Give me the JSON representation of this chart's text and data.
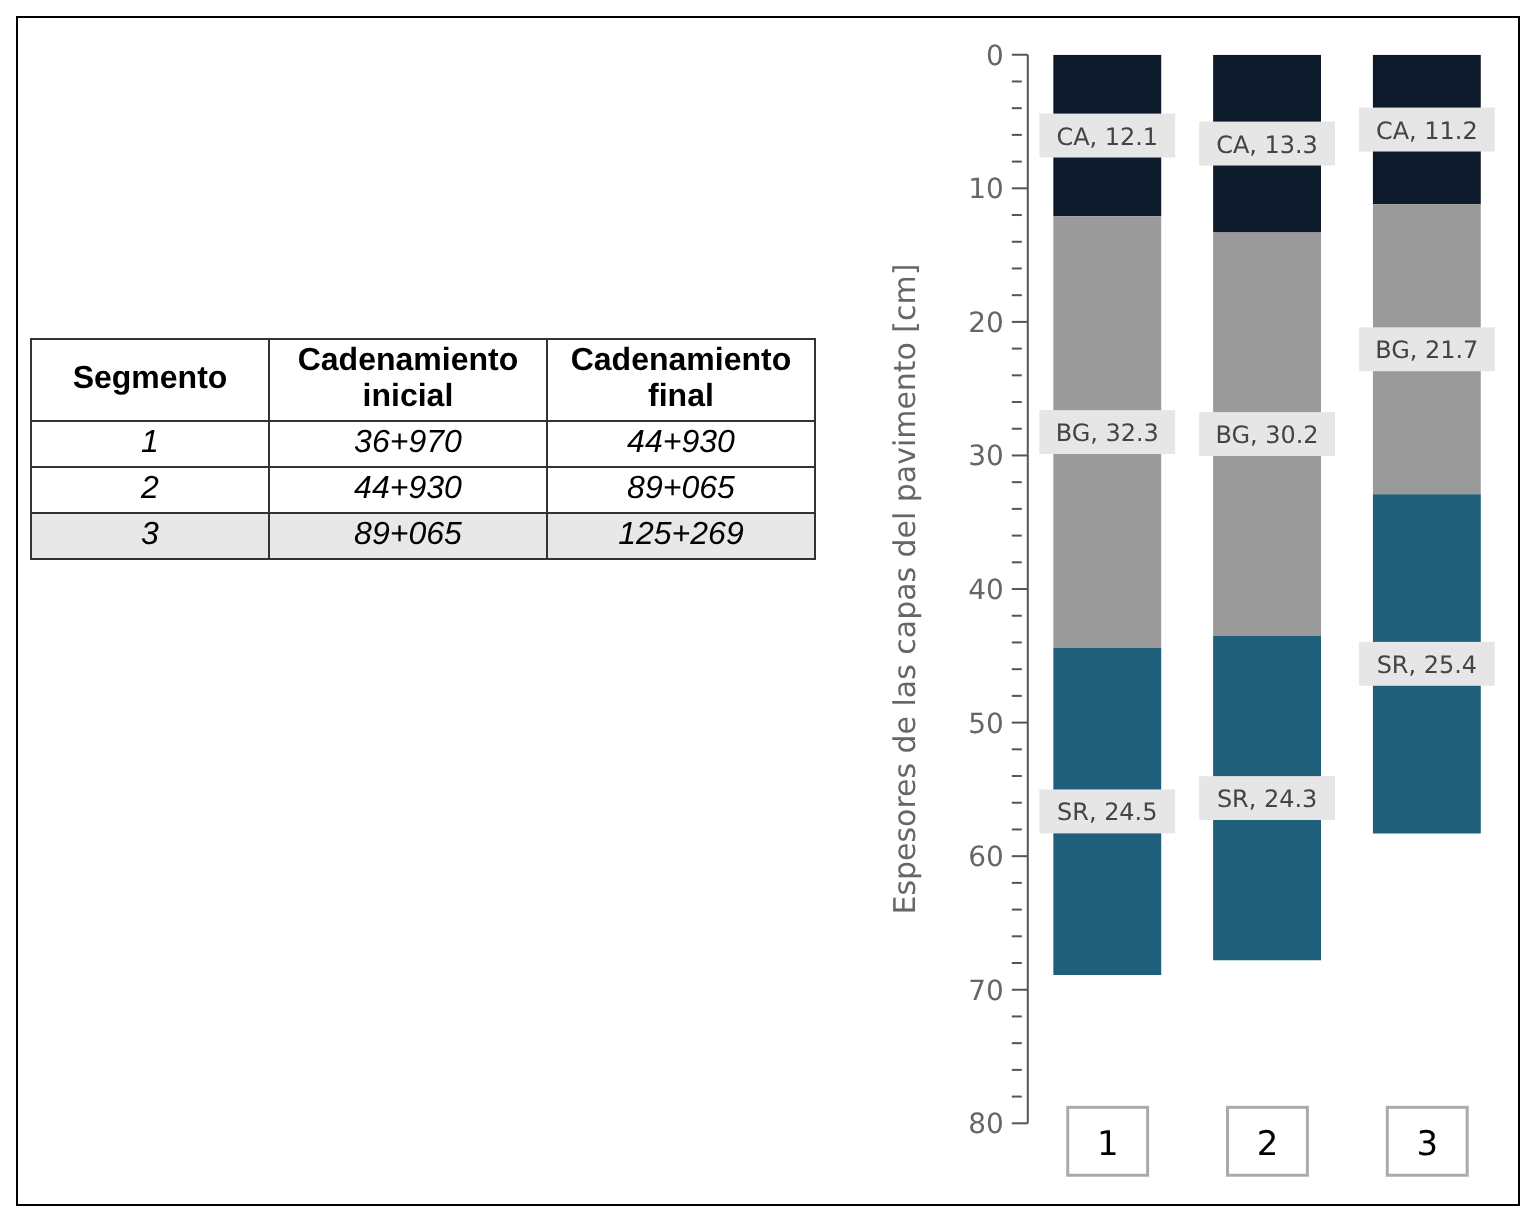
{
  "chart_data": {
    "type": "bar",
    "stacked": true,
    "ylabel": "Espesores de las capas del pavimento [cm]",
    "categories": [
      "1",
      "2",
      "3"
    ],
    "series": [
      {
        "color": "#0d1a2b",
        "values": [
          12.1,
          13.3,
          11.2
        ],
        "value_labels": [
          "CA, 12.1",
          "CA, 13.3",
          "CA, 11.2"
        ]
      },
      {
        "color": "#9a9a9a",
        "values": [
          32.3,
          30.2,
          21.7
        ],
        "value_labels": [
          "BG, 32.3",
          "BG, 30.2",
          "BG, 21.7"
        ]
      },
      {
        "color": "#1f5f7a",
        "values": [
          24.5,
          24.3,
          25.4
        ],
        "value_labels": [
          "SR, 24.5",
          "SR, 24.3",
          "SR, 25.4"
        ]
      }
    ],
    "ylim": [
      80,
      0
    ],
    "yticks": [
      0,
      {
        "value": 2,
        "label": null
      },
      {
        "value": 4,
        "label": null
      },
      {
        "value": 6,
        "label": null
      },
      {
        "value": 8,
        "label": null
      },
      10,
      {
        "value": 12,
        "label": null
      },
      {
        "value": 14,
        "label": null
      },
      {
        "value": 16,
        "label": null
      },
      {
        "value": 18,
        "label": null
      },
      20,
      {
        "value": 22,
        "label": null
      },
      {
        "value": 24,
        "label": null
      },
      {
        "value": 26,
        "label": null
      },
      {
        "value": 28,
        "label": null
      },
      30,
      {
        "value": 32,
        "label": null
      },
      {
        "value": 34,
        "label": null
      },
      {
        "value": 36,
        "label": null
      },
      {
        "value": 38,
        "label": null
      },
      40,
      {
        "value": 42,
        "label": null
      },
      {
        "value": 44,
        "label": null
      },
      {
        "value": 46,
        "label": null
      },
      {
        "value": 48,
        "label": null
      },
      50,
      {
        "value": 52,
        "label": null
      },
      {
        "value": 54,
        "label": null
      },
      {
        "value": 56,
        "label": null
      },
      {
        "value": 58,
        "label": null
      },
      60,
      {
        "value": 62,
        "label": null
      },
      {
        "value": 64,
        "label": null
      },
      {
        "value": 66,
        "label": null
      },
      {
        "value": 68,
        "label": null
      },
      70,
      {
        "value": 72,
        "label": null
      },
      {
        "value": 74,
        "label": null
      },
      {
        "value": 76,
        "label": null
      },
      {
        "value": 78,
        "label": null
      },
      80
    ],
    "grid": false,
    "legend": false,
    "annotations": [
      "Segmento",
      "Cadenamiento inicial",
      "Cadenamiento final",
      "1",
      "36+970",
      "44+930",
      "2",
      "44+930",
      "89+065",
      "3",
      "89+065",
      "125+269"
    ]
  }
}
